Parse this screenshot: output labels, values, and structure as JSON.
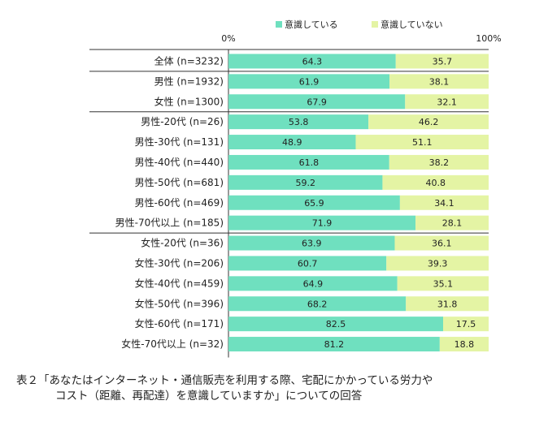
{
  "chart_data": {
    "type": "bar",
    "orientation": "horizontal",
    "stacked": true,
    "xlim": [
      0,
      100
    ],
    "x_ticks": [
      "0%",
      "100%"
    ],
    "legend_position": "top",
    "colors": {
      "aware": "#6fe0bf",
      "unaware": "#e4f4a4"
    },
    "series": [
      {
        "name": "意識している",
        "values": [
          64.3,
          61.9,
          67.9,
          53.8,
          48.9,
          61.8,
          59.2,
          65.9,
          71.9,
          63.9,
          60.7,
          64.9,
          68.2,
          82.5,
          81.2
        ]
      },
      {
        "name": "意識していない",
        "values": [
          35.7,
          38.1,
          32.1,
          46.2,
          51.1,
          38.2,
          40.8,
          34.1,
          28.1,
          36.1,
          39.3,
          35.1,
          31.8,
          17.5,
          18.8
        ]
      }
    ],
    "categories": [
      "全体 (n=3232)",
      "男性 (n=1932)",
      "女性 (n=1300)",
      "男性-20代 (n=26)",
      "男性-30代 (n=131)",
      "男性-40代 (n=440)",
      "男性-50代 (n=681)",
      "男性-60代 (n=469)",
      "男性-70代以上 (n=185)",
      "女性-20代 (n=36)",
      "女性-30代 (n=206)",
      "女性-40代 (n=459)",
      "女性-50代 (n=396)",
      "女性-60代 (n=171)",
      "女性-70代以上 (n=32)"
    ]
  },
  "caption": {
    "line1": "表２「あなたはインターネット・通信販売を利用する際、宅配にかかっている労力や",
    "line2": "コスト（距離、再配達）を意識していますか」についての回答"
  }
}
